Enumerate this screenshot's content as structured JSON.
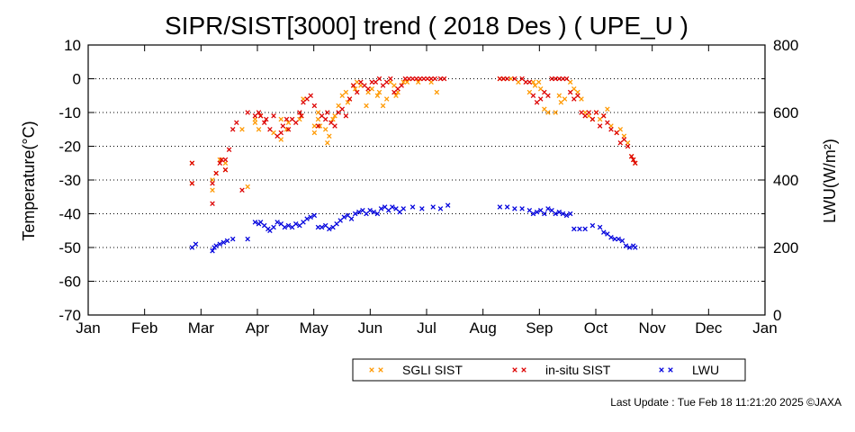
{
  "chart_data": {
    "type": "scatter",
    "title": "SIPR/SIST[3000] trend ( 2018 Des ) ( UPE_U )",
    "xlabel": "",
    "ylabel": "Temperature(°C)",
    "y2label": "LWU(W/m²)",
    "x_ticks": [
      "Jan",
      "Feb",
      "Mar",
      "Apr",
      "May",
      "Jun",
      "Jul",
      "Aug",
      "Sep",
      "Oct",
      "Nov",
      "Dec",
      "Jan"
    ],
    "ylim": [
      -70,
      10
    ],
    "yticks": [
      10,
      0,
      -10,
      -20,
      -30,
      -40,
      -50,
      -60,
      -70
    ],
    "y2lim": [
      0,
      800
    ],
    "y2ticks": [
      800,
      600,
      400,
      200,
      0
    ],
    "grid": "horizontal dotted",
    "legend_position": "bottom",
    "series": [
      {
        "name": "SGLI SIST",
        "axis": "left",
        "color": "#ff9900",
        "x_day": [
          56,
          56,
          67,
          67,
          69,
          71,
          74,
          74,
          83,
          86,
          90,
          90,
          92,
          93,
          100,
          104,
          104,
          107,
          108,
          114,
          115,
          116,
          122,
          122,
          124,
          124,
          125,
          128,
          129,
          130,
          132,
          133,
          135,
          137,
          139,
          140,
          141,
          143,
          144,
          145,
          147,
          150,
          151,
          153,
          156,
          157,
          159,
          161,
          163,
          165,
          166,
          167,
          170,
          172,
          178,
          185,
          188,
          222,
          224,
          228,
          232,
          238,
          240,
          241,
          243,
          244,
          246,
          248,
          252,
          254,
          255,
          257,
          260,
          262,
          264,
          266,
          268,
          270,
          272,
          274,
          276,
          278,
          280,
          282,
          285,
          287,
          289,
          291,
          293,
          294,
          295
        ],
        "y": [
          -31,
          -25,
          -33,
          -30,
          -28,
          -24,
          -27,
          -25,
          -15,
          -32,
          -13,
          -12,
          -15,
          -11,
          -16,
          -12,
          -18,
          -15,
          -13,
          -12,
          -11,
          -6,
          -14,
          -16,
          -12,
          -10,
          -14,
          -15,
          -19,
          -17,
          -12,
          -11,
          -8,
          -5,
          -4,
          -7,
          -6,
          -2,
          -3,
          -1,
          -2,
          -8,
          -4,
          -3,
          -5,
          -4,
          -8,
          -6,
          -1,
          -2,
          -5,
          -4,
          -1,
          -1,
          -1,
          -1,
          -4,
          0,
          0,
          0,
          -1,
          -4,
          -1,
          -2,
          -1,
          -3,
          -9,
          -10,
          -10,
          -5,
          -7,
          -6,
          -1,
          -3,
          -4,
          -6,
          -10,
          -11,
          -12,
          -10,
          -12,
          -11,
          -9,
          -14,
          -16,
          -15,
          -17,
          -19,
          -23,
          -24,
          -25
        ]
      },
      {
        "name": "in-situ SIST",
        "axis": "left",
        "color": "#dd0000",
        "x_day": [
          56,
          56,
          67,
          67,
          69,
          71,
          72,
          74,
          74,
          76,
          78,
          80,
          83,
          86,
          90,
          92,
          93,
          95,
          96,
          98,
          100,
          102,
          104,
          105,
          107,
          108,
          110,
          112,
          114,
          115,
          116,
          118,
          120,
          122,
          124,
          126,
          128,
          129,
          131,
          133,
          135,
          137,
          139,
          141,
          143,
          145,
          147,
          149,
          151,
          153,
          155,
          157,
          159,
          161,
          163,
          165,
          167,
          169,
          171,
          173,
          175,
          177,
          179,
          181,
          183,
          185,
          187,
          190,
          192,
          222,
          224,
          226,
          230,
          234,
          236,
          238,
          240,
          242,
          244,
          246,
          248,
          250,
          252,
          254,
          256,
          258,
          260,
          262,
          264,
          266,
          268,
          270,
          272,
          274,
          276,
          278,
          280,
          282,
          285,
          287,
          289,
          291,
          293,
          294,
          295
        ],
        "y": [
          -31,
          -25,
          -37,
          -31,
          -28,
          -25,
          -24,
          -27,
          -24,
          -21,
          -15,
          -13,
          -33,
          -10,
          -11,
          -10,
          -11,
          -13,
          -12,
          -15,
          -11,
          -17,
          -16,
          -14,
          -12,
          -15,
          -12,
          -13,
          -10,
          -11,
          -7,
          -6,
          -5,
          -8,
          -14,
          -11,
          -12,
          -10,
          -13,
          -14,
          -10,
          -9,
          -11,
          -6,
          -2,
          -4,
          -1,
          -2,
          -3,
          -1,
          -1,
          0,
          -2,
          -1,
          0,
          -4,
          -3,
          -2,
          0,
          0,
          0,
          0,
          0,
          0,
          0,
          0,
          0,
          0,
          0,
          0,
          0,
          0,
          0,
          0,
          -1,
          -1,
          -5,
          -7,
          -6,
          -4,
          -5,
          0,
          0,
          0,
          0,
          0,
          -4,
          -6,
          -5,
          -10,
          -11,
          -10,
          -12,
          -10,
          -14,
          -11,
          -13,
          -15,
          -16,
          -19,
          -18,
          -20,
          -23,
          -24,
          -25
        ]
      },
      {
        "name": "LWU",
        "axis": "right",
        "color": "#0000dd",
        "x_day": [
          56,
          58,
          67,
          68,
          69,
          71,
          73,
          75,
          78,
          86,
          90,
          92,
          93,
          95,
          97,
          98,
          100,
          102,
          104,
          106,
          108,
          110,
          112,
          114,
          116,
          118,
          120,
          122,
          124,
          126,
          128,
          130,
          132,
          134,
          136,
          138,
          140,
          142,
          144,
          146,
          148,
          150,
          152,
          154,
          156,
          158,
          160,
          162,
          164,
          166,
          168,
          170,
          175,
          180,
          186,
          190,
          194,
          222,
          226,
          230,
          234,
          238,
          240,
          242,
          244,
          246,
          248,
          250,
          252,
          254,
          256,
          258,
          260,
          262,
          265,
          268,
          272,
          276,
          278,
          280,
          282,
          284,
          286,
          288,
          290,
          292,
          294,
          295
        ],
        "y": [
          200,
          210,
          190,
          200,
          205,
          210,
          215,
          220,
          225,
          225,
          275,
          270,
          275,
          265,
          255,
          250,
          260,
          275,
          270,
          260,
          265,
          260,
          270,
          265,
          275,
          285,
          290,
          295,
          260,
          260,
          265,
          255,
          260,
          270,
          280,
          290,
          295,
          285,
          300,
          305,
          310,
          300,
          310,
          305,
          300,
          315,
          320,
          310,
          320,
          315,
          305,
          315,
          320,
          315,
          320,
          315,
          325,
          320,
          320,
          315,
          315,
          310,
          300,
          305,
          310,
          300,
          315,
          310,
          300,
          305,
          300,
          295,
          300,
          255,
          255,
          255,
          265,
          260,
          245,
          240,
          230,
          225,
          225,
          220,
          205,
          200,
          205,
          200
        ]
      }
    ]
  },
  "footer": "Last Update : Tue Feb 18 11:21:20 2025  ©JAXA"
}
